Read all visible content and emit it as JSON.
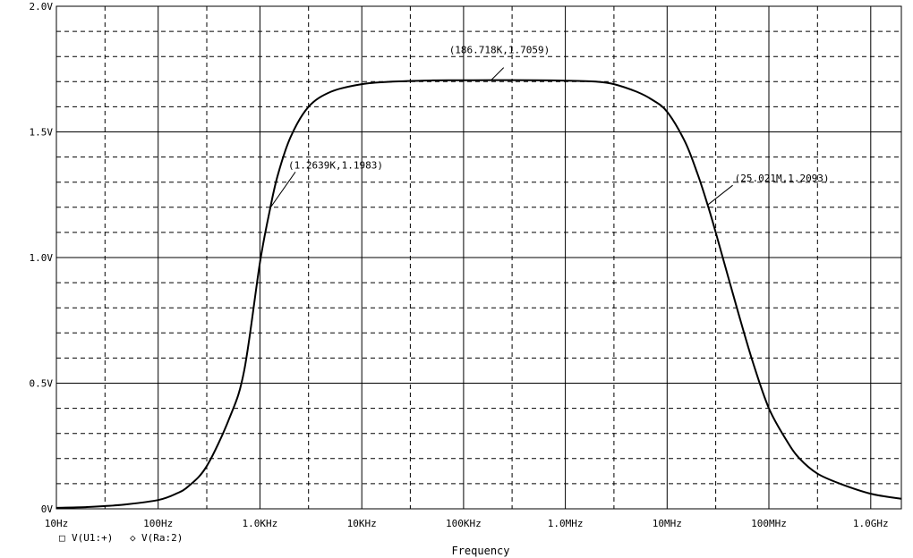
{
  "chart_data": {
    "type": "line",
    "title": "",
    "xlabel": "Frequency",
    "ylabel": "",
    "x_scale": "log",
    "xlim": [
      10,
      2000000000
    ],
    "ylim": [
      0,
      2.0
    ],
    "grid": true,
    "x_tick_labels": [
      "10Hz",
      "100Hz",
      "1.0KHz",
      "10KHz",
      "100KHz",
      "1.0MHz",
      "10MHz",
      "100MHz",
      "1.0GHz"
    ],
    "x_tick_values": [
      10,
      100,
      1000,
      10000,
      100000,
      1000000,
      10000000,
      100000000,
      1000000000
    ],
    "y_tick_labels": [
      "0V",
      "0.5V",
      "1.0V",
      "1.5V",
      "2.0V"
    ],
    "y_tick_values": [
      0,
      0.5,
      1.0,
      1.5,
      2.0
    ],
    "legend": {
      "placement": "bottom-left",
      "entries": [
        {
          "marker": "□",
          "label": "V(U1:+)"
        },
        {
          "marker": "◇",
          "label": "V(Ra:2)"
        }
      ]
    },
    "series": [
      {
        "color": "#000000",
        "x": [
          10,
          20,
          30,
          50,
          100,
          150,
          200,
          300,
          500,
          700,
          1000,
          1263.9,
          1500,
          2000,
          3000,
          5000,
          10000,
          20000,
          50000,
          100000,
          186718,
          500000,
          1000000,
          2000000,
          3000000,
          5000000,
          7000000,
          10000000,
          15000000,
          20000000,
          25021000,
          30000000,
          50000000,
          70000000,
          100000000,
          150000000,
          200000000,
          300000000,
          500000000,
          1000000000,
          2000000000
        ],
        "values": [
          0.004,
          0.007,
          0.011,
          0.018,
          0.035,
          0.06,
          0.091,
          0.17,
          0.36,
          0.55,
          0.98,
          1.1983,
          1.33,
          1.48,
          1.6,
          1.66,
          1.69,
          1.7,
          1.705,
          1.7055,
          1.7059,
          1.7055,
          1.704,
          1.7,
          1.69,
          1.66,
          1.63,
          1.58,
          1.46,
          1.33,
          1.2093,
          1.1,
          0.78,
          0.58,
          0.4,
          0.27,
          0.2,
          0.14,
          0.1,
          0.06,
          0.04
        ]
      }
    ],
    "annotations": [
      {
        "text": "(1.2639K,1.1983)",
        "x": 1263.9,
        "y": 1.1983
      },
      {
        "text": "(186.718K,1.7059)",
        "x": 186718,
        "y": 1.7059
      },
      {
        "text": "(25.021M,1.2093)",
        "x": 25021000,
        "y": 1.2093
      }
    ]
  }
}
